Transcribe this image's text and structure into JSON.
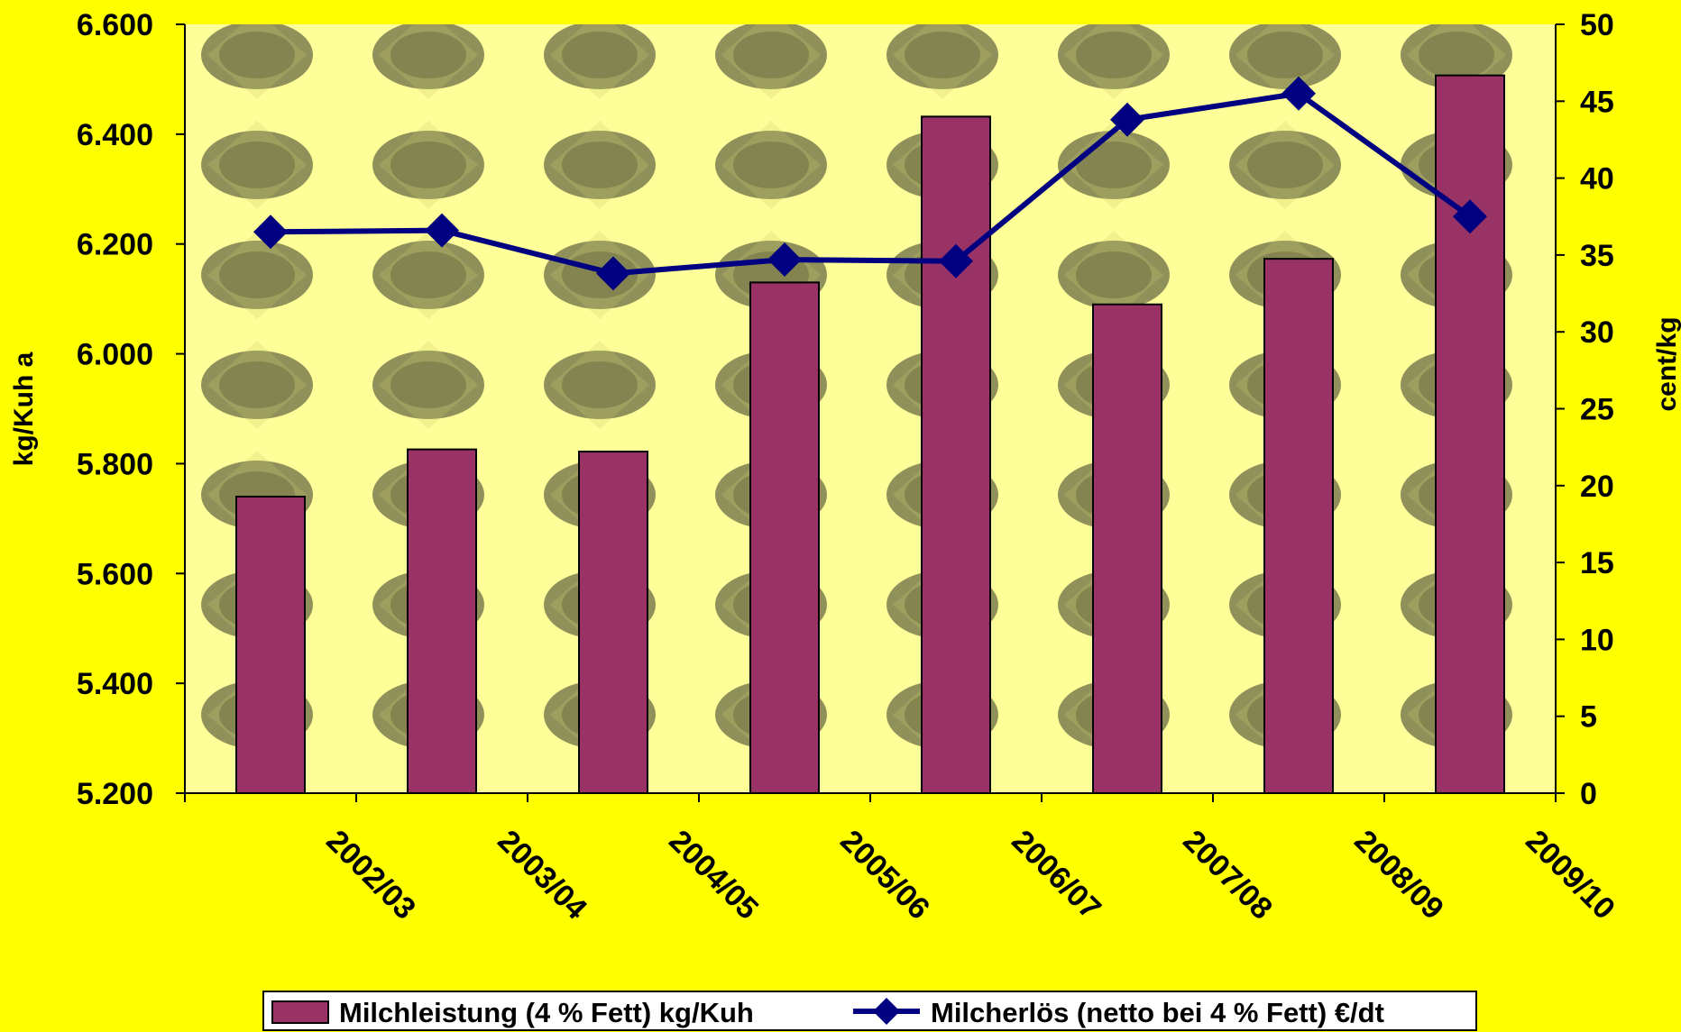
{
  "chart_data": {
    "type": "bar",
    "categories": [
      "2002/03",
      "2003/04",
      "2004/05",
      "2005/06",
      "2006/07",
      "2007/08",
      "2008/09",
      "2009/10"
    ],
    "series": [
      {
        "name": "Milchleistung (4 % Fett) kg/Kuh",
        "type": "bar",
        "axis": "left",
        "color": "#993366",
        "values": [
          5740,
          5826,
          5822,
          6130,
          6432,
          6090,
          6173,
          6507
        ]
      },
      {
        "name": "Milcherlös (netto bei 4 % Fett) €/dt",
        "type": "line",
        "axis": "right",
        "color": "#000080",
        "marker": "diamond",
        "values": [
          36.5,
          36.6,
          33.8,
          34.7,
          34.6,
          43.8,
          45.5,
          37.5
        ]
      }
    ],
    "y_left": {
      "label": "kg/Kuh a",
      "min": 5200,
      "max": 6600,
      "ticks": [
        "5.200",
        "5.400",
        "5.600",
        "5.800",
        "6.000",
        "6.200",
        "6.400",
        "6.600"
      ]
    },
    "y_right": {
      "label": "cent/kg",
      "min": 0,
      "max": 50,
      "ticks": [
        "0",
        "5",
        "10",
        "15",
        "20",
        "25",
        "30",
        "35",
        "40",
        "45",
        "50"
      ]
    },
    "legend_position": "bottom",
    "background": "#ffff00",
    "plot_background": "#ffff99"
  }
}
